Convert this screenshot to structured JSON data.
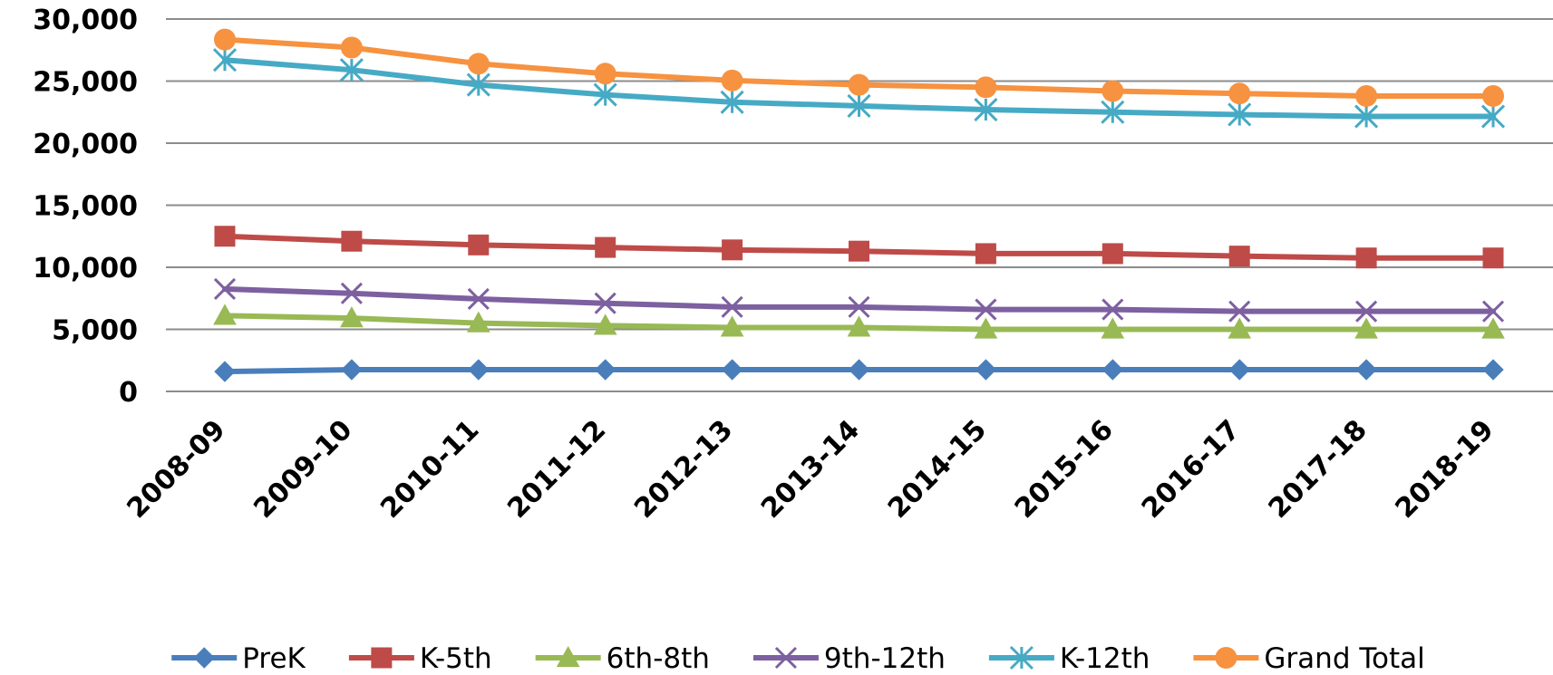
{
  "chart_data": {
    "type": "line",
    "title": "",
    "xlabel": "",
    "ylabel": "",
    "ylim": [
      0,
      30000
    ],
    "yticks": [
      0,
      5000,
      10000,
      15000,
      20000,
      25000,
      30000
    ],
    "ytick_labels": [
      "0",
      "5,000",
      "10,000",
      "15,000",
      "20,000",
      "25,000",
      "30,000"
    ],
    "grid": true,
    "legend_position": "bottom",
    "categories": [
      "2008-09",
      "2009-10",
      "2010-11",
      "2011-12",
      "2012-13",
      "2013-14",
      "2014-15",
      "2015-16",
      "2016-17",
      "2017-18",
      "2018-19"
    ],
    "series": [
      {
        "name": "PreK",
        "color": "#4a7ebb",
        "marker": "diamond",
        "values": [
          1600,
          1750,
          1750,
          1750,
          1750,
          1750,
          1750,
          1750,
          1750,
          1750,
          1750
        ]
      },
      {
        "name": "K-5th",
        "color": "#be4b48",
        "marker": "square",
        "values": [
          12500,
          12100,
          11800,
          11600,
          11400,
          11300,
          11100,
          11100,
          10900,
          10750,
          10750
        ]
      },
      {
        "name": "6th-8th",
        "color": "#98b954",
        "marker": "triangle",
        "values": [
          6100,
          5900,
          5500,
          5300,
          5150,
          5150,
          5000,
          5000,
          5000,
          5000,
          5000
        ]
      },
      {
        "name": "9th-12th",
        "color": "#7d60a0",
        "marker": "x",
        "values": [
          8250,
          7900,
          7450,
          7100,
          6800,
          6800,
          6600,
          6600,
          6450,
          6450,
          6450
        ]
      },
      {
        "name": "K-12th",
        "color": "#46aac5",
        "marker": "star",
        "values": [
          26700,
          25900,
          24700,
          23900,
          23300,
          23000,
          22700,
          22500,
          22300,
          22150,
          22150
        ]
      },
      {
        "name": "Grand Total",
        "color": "#f69240",
        "marker": "circle",
        "values": [
          28350,
          27700,
          26400,
          25600,
          25050,
          24700,
          24500,
          24200,
          24000,
          23800,
          23800
        ]
      }
    ]
  }
}
